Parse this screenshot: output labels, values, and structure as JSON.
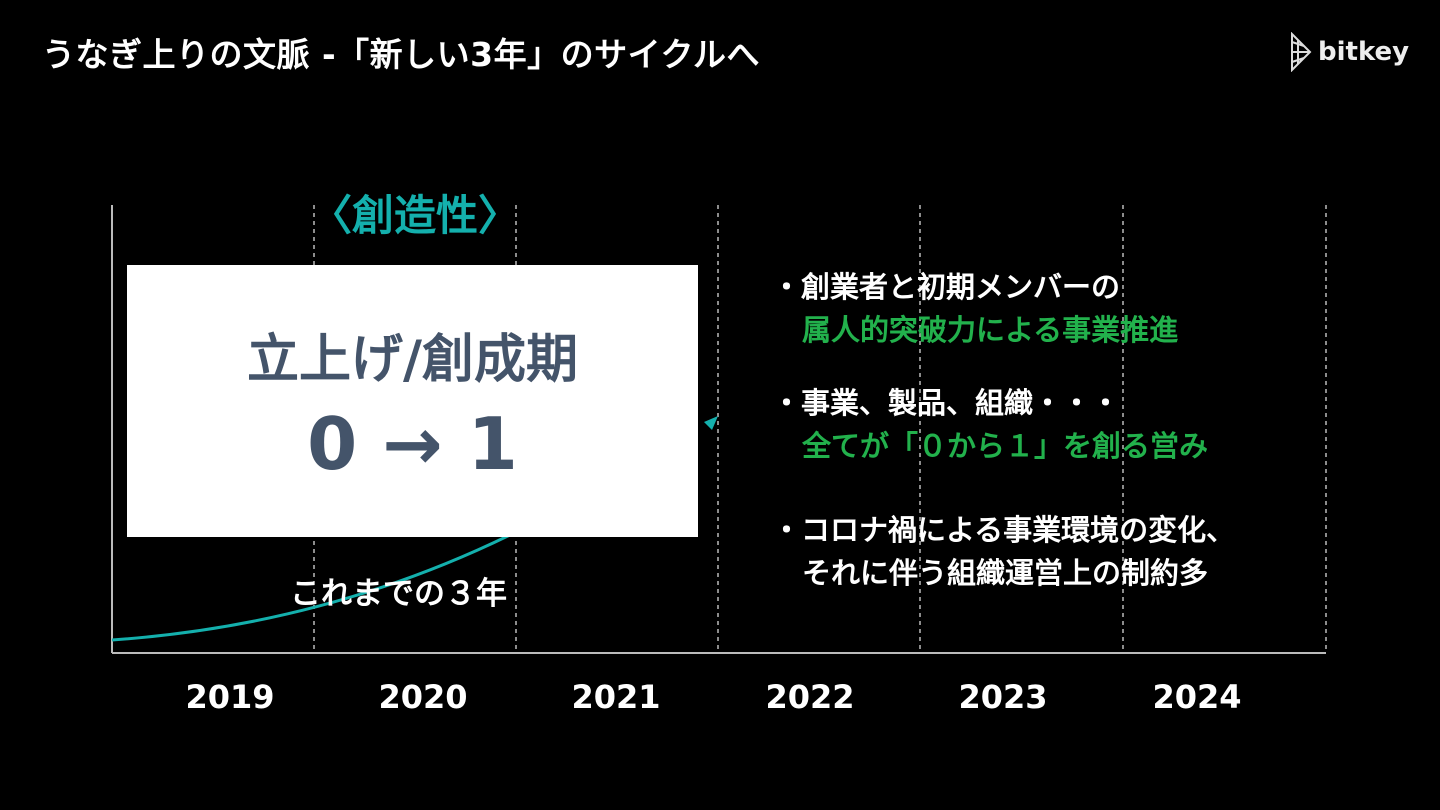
{
  "slide": {
    "title": "うなぎ上りの文脈 -「新しい3年」のサイクルへ",
    "logo_text": "bitkey"
  },
  "timeline": {
    "years": [
      "2019",
      "2020",
      "2021",
      "2022",
      "2023",
      "2024"
    ],
    "category_label": "〈創造性〉",
    "phase_box": {
      "heading": "立上げ/創成期",
      "value": "0 → 1"
    },
    "period_label": "これまでの３年",
    "curve_color": "#14b0ad"
  },
  "bullets": [
    {
      "line1": "・創業者と初期メンバーの",
      "line2": "属人的突破力による事業推進",
      "line2_highlight": true
    },
    {
      "line1": "・事業、製品、組織・・・",
      "line2": "全てが「０から１」を創る営み",
      "line2_highlight": true
    },
    {
      "line1": "・コロナ禍による事業環境の変化、",
      "line2": "それに伴う組織運営上の制約多",
      "line2_highlight": false
    }
  ],
  "colors": {
    "accent_teal": "#14b0ad",
    "highlight_green": "#22b14c",
    "box_text": "#44546a",
    "background": "#000000"
  }
}
